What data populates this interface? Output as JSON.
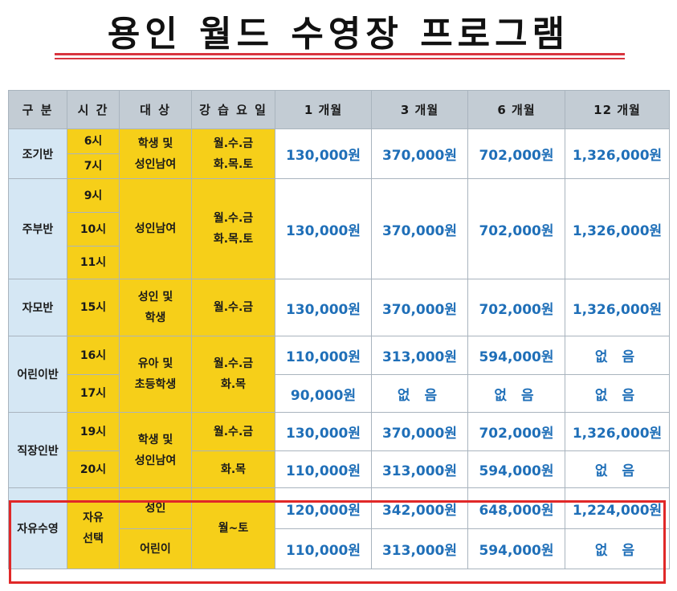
{
  "title": "용인 월드 수영장 프로그램",
  "headers": [
    "구 분",
    "시 간",
    "대 상",
    "강 습 요 일",
    "1 개월",
    "3 개월",
    "6 개월",
    "12 개월"
  ],
  "groups": [
    {
      "category": "조기반",
      "times": [
        "6시",
        "7시"
      ],
      "target": [
        "학생 및",
        "성인남여"
      ],
      "days": [
        "월.수.금",
        "화.목.토"
      ],
      "prices": [
        "130,000원",
        "370,000원",
        "702,000원",
        "1,326,000원"
      ]
    },
    {
      "category": "주부반",
      "times": [
        "9시",
        "10시",
        "11시"
      ],
      "target": [
        "성인남여"
      ],
      "days": [
        "월.수.금",
        "화.목.토"
      ],
      "prices": [
        "130,000원",
        "370,000원",
        "702,000원",
        "1,326,000원"
      ]
    },
    {
      "category": "자모반",
      "times": [
        "15시"
      ],
      "target": [
        "성인 및",
        "학생"
      ],
      "days": [
        "월.수.금"
      ],
      "prices": [
        "130,000원",
        "370,000원",
        "702,000원",
        "1,326,000원"
      ]
    },
    {
      "category": "어린이반",
      "times": [
        "16시",
        "17시"
      ],
      "target": [
        "유아 및",
        "초등학생"
      ],
      "days": [
        "월.수.금",
        "화.목"
      ],
      "prices_rows": [
        [
          "110,000원",
          "313,000원",
          "594,000원",
          "없 음"
        ],
        [
          "90,000원",
          "없 음",
          "없 음",
          "없 음"
        ]
      ]
    },
    {
      "category": "직장인반",
      "times": [
        "19시",
        "20시"
      ],
      "target": [
        "학생 및",
        "성인남여"
      ],
      "days_rows": [
        "월.수.금",
        "화.목"
      ],
      "prices_rows": [
        [
          "130,000원",
          "370,000원",
          "702,000원",
          "1,326,000원"
        ],
        [
          "110,000원",
          "313,000원",
          "594,000원",
          "없 음"
        ]
      ]
    },
    {
      "category": "자유수영",
      "time": [
        "자유",
        "선택"
      ],
      "targets": [
        "성인",
        "어린이"
      ],
      "days": [
        "월~토"
      ],
      "prices_rows": [
        [
          "120,000원",
          "342,000원",
          "648,000원",
          "1,224,000원"
        ],
        [
          "110,000원",
          "313,000원",
          "594,000원",
          "없 음"
        ]
      ]
    }
  ],
  "colors": {
    "header_bg": "#c3ccd4",
    "category_bg": "#d5e7f4",
    "yellow": "#f6cf19",
    "price_text": "#1f6fb8",
    "rule": "#d8353f",
    "highlight": "#e02828"
  }
}
